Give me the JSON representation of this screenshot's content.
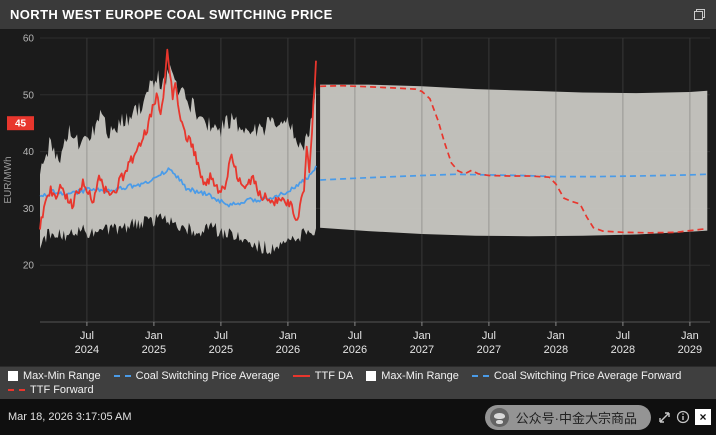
{
  "header": {
    "title": "NORTH WEST EUROPE COAL SWITCHING PRICE"
  },
  "icons": [
    "restore-window",
    "expand",
    "info",
    "close",
    "wechat-logo"
  ],
  "footer": {
    "timestamp": "Mar 18, 2026 3:17:05 AM",
    "watermark": "公众号·中金大宗商品",
    "close_glyph": "×"
  },
  "colors": {
    "band_gray": "#c9c8c3",
    "ttf_red": "#e8362d",
    "coal_blue": "#4a9be8",
    "plot_bg": "#1b1b1b",
    "bar_bg": "#3f3f3f"
  },
  "legend": {
    "rows": [
      [
        {
          "label": "Max-Min Range",
          "icon": "band",
          "color": "#ffffff",
          "dashed": false
        },
        {
          "label": "Coal Switching Price Average",
          "icon": "line",
          "color": "#4a9be8",
          "dashed": true
        },
        {
          "label": "TTF DA",
          "icon": "line",
          "color": "#e8362d",
          "dashed": false
        },
        {
          "label": "Max-Min Range",
          "icon": "band",
          "color": "#ffffff",
          "dashed": false
        },
        {
          "label": "Coal Switching Price Average Forward",
          "icon": "line",
          "color": "#4a9be8",
          "dashed": true
        }
      ],
      [
        {
          "label": "TTF Forward",
          "icon": "line",
          "color": "#e8362d",
          "dashed": true
        }
      ]
    ]
  },
  "chart_data": {
    "type": "line",
    "title": "NORTH WEST EUROPE COAL SWITCHING PRICE",
    "xlabel": "",
    "ylabel": "EUR/MWh",
    "x_domain": [
      2024.15,
      2029.15
    ],
    "y_domain": [
      10,
      60
    ],
    "y_ticks": [
      20,
      30,
      40,
      50,
      60
    ],
    "y_axis_highlight": {
      "value": 45,
      "label": "45",
      "color": "#e8362d"
    },
    "x_ticks": [
      {
        "t": 2024.5,
        "line1": "Jul",
        "line2": "2024"
      },
      {
        "t": 2025.0,
        "line1": "Jan",
        "line2": "2025"
      },
      {
        "t": 2025.5,
        "line1": "Jul",
        "line2": "2025"
      },
      {
        "t": 2026.0,
        "line1": "Jan",
        "line2": "2026"
      },
      {
        "t": 2026.5,
        "line1": "Jul",
        "line2": "2026"
      },
      {
        "t": 2027.0,
        "line1": "Jan",
        "line2": "2027"
      },
      {
        "t": 2027.5,
        "line1": "Jul",
        "line2": "2027"
      },
      {
        "t": 2028.0,
        "line1": "Jan",
        "line2": "2028"
      },
      {
        "t": 2028.5,
        "line1": "Jul",
        "line2": "2028"
      },
      {
        "t": 2029.0,
        "line1": "Jan",
        "line2": "2029"
      }
    ],
    "history_end": 2026.21,
    "forward_start": 2026.24,
    "bands": [
      {
        "name": "Max-Min Range",
        "fill": "#c9c8c3",
        "noise": 1.6,
        "upper": [
          [
            2024.15,
            36
          ],
          [
            2024.22,
            41
          ],
          [
            2024.3,
            39
          ],
          [
            2024.38,
            44
          ],
          [
            2024.45,
            41
          ],
          [
            2024.52,
            43
          ],
          [
            2024.6,
            46
          ],
          [
            2024.68,
            43
          ],
          [
            2024.75,
            45
          ],
          [
            2024.82,
            46
          ],
          [
            2024.9,
            48
          ],
          [
            2024.97,
            51
          ],
          [
            2025.02,
            53
          ],
          [
            2025.08,
            52
          ],
          [
            2025.12,
            55
          ],
          [
            2025.18,
            51
          ],
          [
            2025.25,
            49
          ],
          [
            2025.32,
            47
          ],
          [
            2025.4,
            45
          ],
          [
            2025.5,
            44
          ],
          [
            2025.58,
            46
          ],
          [
            2025.65,
            44
          ],
          [
            2025.72,
            43
          ],
          [
            2025.8,
            44
          ],
          [
            2025.88,
            45
          ],
          [
            2025.95,
            46
          ],
          [
            2026.02,
            45
          ],
          [
            2026.08,
            42
          ],
          [
            2026.12,
            40
          ],
          [
            2026.16,
            44
          ],
          [
            2026.21,
            52
          ]
        ],
        "lower": [
          [
            2024.15,
            24
          ],
          [
            2024.25,
            26
          ],
          [
            2024.35,
            25
          ],
          [
            2024.45,
            26
          ],
          [
            2024.55,
            25.5
          ],
          [
            2024.65,
            26
          ],
          [
            2024.75,
            26.5
          ],
          [
            2024.85,
            27
          ],
          [
            2024.95,
            27.5
          ],
          [
            2025.05,
            28
          ],
          [
            2025.15,
            27
          ],
          [
            2025.25,
            26.5
          ],
          [
            2025.35,
            26
          ],
          [
            2025.45,
            26.5
          ],
          [
            2025.55,
            25.5
          ],
          [
            2025.65,
            24.5
          ],
          [
            2025.75,
            23.5
          ],
          [
            2025.85,
            23
          ],
          [
            2025.92,
            22.5
          ],
          [
            2026.0,
            24
          ],
          [
            2026.08,
            25
          ],
          [
            2026.15,
            25.5
          ],
          [
            2026.21,
            26.5
          ]
        ]
      },
      {
        "name": "Max-Min Range Forward",
        "fill": "#c9c8c3",
        "noise": 0,
        "upper": [
          [
            2026.24,
            51.8
          ],
          [
            2026.6,
            51.8
          ],
          [
            2027.0,
            51.5
          ],
          [
            2027.4,
            51.0
          ],
          [
            2027.8,
            50.7
          ],
          [
            2028.2,
            50.4
          ],
          [
            2028.6,
            50.3
          ],
          [
            2029.0,
            50.5
          ],
          [
            2029.13,
            50.7
          ]
        ],
        "lower": [
          [
            2026.24,
            26.6
          ],
          [
            2026.6,
            26.0
          ],
          [
            2027.0,
            25.5
          ],
          [
            2027.4,
            25.2
          ],
          [
            2027.8,
            25.1
          ],
          [
            2028.2,
            25.2
          ],
          [
            2028.6,
            25.4
          ],
          [
            2029.0,
            25.9
          ],
          [
            2029.13,
            26.1
          ]
        ]
      }
    ],
    "lines": [
      {
        "name": "Coal Switching Price Average",
        "color": "#4a9be8",
        "dash": null,
        "width": 1.7,
        "noise": 0.4,
        "points": [
          [
            2024.15,
            32
          ],
          [
            2024.25,
            33
          ],
          [
            2024.35,
            32.5
          ],
          [
            2024.45,
            33
          ],
          [
            2024.55,
            33.5
          ],
          [
            2024.65,
            33
          ],
          [
            2024.75,
            33.5
          ],
          [
            2024.85,
            34
          ],
          [
            2024.95,
            34.5
          ],
          [
            2025.05,
            36
          ],
          [
            2025.12,
            37
          ],
          [
            2025.18,
            35.5
          ],
          [
            2025.24,
            33.5
          ],
          [
            2025.32,
            33
          ],
          [
            2025.4,
            32.5
          ],
          [
            2025.48,
            31.5
          ],
          [
            2025.56,
            30.5
          ],
          [
            2025.64,
            31
          ],
          [
            2025.72,
            31.5
          ],
          [
            2025.8,
            31.5
          ],
          [
            2025.88,
            32
          ],
          [
            2025.96,
            32.5
          ],
          [
            2026.04,
            33.5
          ],
          [
            2026.1,
            34.5
          ],
          [
            2026.15,
            35.5
          ],
          [
            2026.21,
            37.5
          ]
        ]
      },
      {
        "name": "TTF DA",
        "color": "#e8362d",
        "dash": null,
        "width": 1.8,
        "noise": 0.9,
        "points": [
          [
            2024.15,
            27
          ],
          [
            2024.19,
            31
          ],
          [
            2024.23,
            33
          ],
          [
            2024.27,
            31.5
          ],
          [
            2024.31,
            34
          ],
          [
            2024.35,
            32
          ],
          [
            2024.39,
            30.5
          ],
          [
            2024.43,
            33
          ],
          [
            2024.47,
            34.5
          ],
          [
            2024.51,
            33
          ],
          [
            2024.55,
            31.5
          ],
          [
            2024.59,
            35
          ],
          [
            2024.63,
            33.5
          ],
          [
            2024.67,
            32
          ],
          [
            2024.71,
            33
          ],
          [
            2024.75,
            35
          ],
          [
            2024.79,
            36.5
          ],
          [
            2024.83,
            38.5
          ],
          [
            2024.87,
            40
          ],
          [
            2024.91,
            42
          ],
          [
            2024.95,
            44
          ],
          [
            2024.99,
            47.5
          ],
          [
            2025.02,
            50
          ],
          [
            2025.05,
            47
          ],
          [
            2025.08,
            52
          ],
          [
            2025.1,
            58.5
          ],
          [
            2025.12,
            54
          ],
          [
            2025.14,
            50
          ],
          [
            2025.16,
            52.5
          ],
          [
            2025.19,
            46
          ],
          [
            2025.22,
            44
          ],
          [
            2025.26,
            42
          ],
          [
            2025.3,
            40
          ],
          [
            2025.34,
            36.5
          ],
          [
            2025.38,
            34
          ],
          [
            2025.42,
            35.5
          ],
          [
            2025.46,
            33.5
          ],
          [
            2025.5,
            33
          ],
          [
            2025.54,
            34.5
          ],
          [
            2025.58,
            39.5
          ],
          [
            2025.62,
            36
          ],
          [
            2025.66,
            34
          ],
          [
            2025.7,
            34.5
          ],
          [
            2025.74,
            35.5
          ],
          [
            2025.78,
            33
          ],
          [
            2025.82,
            32
          ],
          [
            2025.86,
            31.5
          ],
          [
            2025.9,
            31
          ],
          [
            2025.94,
            32
          ],
          [
            2025.98,
            31.5
          ],
          [
            2026.02,
            30.5
          ],
          [
            2026.06,
            28
          ],
          [
            2026.09,
            30
          ],
          [
            2026.12,
            33.5
          ],
          [
            2026.14,
            41
          ],
          [
            2026.16,
            37
          ],
          [
            2026.18,
            44
          ],
          [
            2026.21,
            56
          ]
        ]
      },
      {
        "name": "Coal Switching Price Average Forward",
        "color": "#4a9be8",
        "dash": "6 4",
        "width": 1.7,
        "noise": 0,
        "points": [
          [
            2026.24,
            35.0
          ],
          [
            2026.5,
            35.3
          ],
          [
            2026.8,
            35.6
          ],
          [
            2027.0,
            35.8
          ],
          [
            2027.25,
            36.0
          ],
          [
            2027.5,
            35.9
          ],
          [
            2027.75,
            35.8
          ],
          [
            2028.0,
            35.6
          ],
          [
            2028.3,
            35.6
          ],
          [
            2028.6,
            35.7
          ],
          [
            2029.0,
            35.9
          ],
          [
            2029.12,
            36.0
          ]
        ]
      },
      {
        "name": "TTF Forward",
        "color": "#e8362d",
        "dash": "6 4",
        "width": 1.7,
        "noise": 0,
        "points": [
          [
            2026.24,
            51.5
          ],
          [
            2026.4,
            51.6
          ],
          [
            2026.6,
            51.4
          ],
          [
            2026.8,
            51.2
          ],
          [
            2026.95,
            51.0
          ],
          [
            2027.0,
            50.6
          ],
          [
            2027.06,
            49.3
          ],
          [
            2027.12,
            45.5
          ],
          [
            2027.17,
            41.5
          ],
          [
            2027.22,
            38
          ],
          [
            2027.27,
            36.6
          ],
          [
            2027.32,
            36.1
          ],
          [
            2027.37,
            36.7
          ],
          [
            2027.42,
            36.1
          ],
          [
            2027.5,
            35.8
          ],
          [
            2027.65,
            35.7
          ],
          [
            2027.8,
            35.7
          ],
          [
            2027.95,
            35.5
          ],
          [
            2028.0,
            34.3
          ],
          [
            2028.06,
            31.8
          ],
          [
            2028.12,
            31.2
          ],
          [
            2028.18,
            30.8
          ],
          [
            2028.23,
            28.5
          ],
          [
            2028.28,
            26.6
          ],
          [
            2028.35,
            26.0
          ],
          [
            2028.5,
            25.8
          ],
          [
            2028.7,
            25.7
          ],
          [
            2028.9,
            25.8
          ],
          [
            2029.0,
            26.1
          ],
          [
            2029.12,
            26.4
          ]
        ]
      }
    ]
  }
}
